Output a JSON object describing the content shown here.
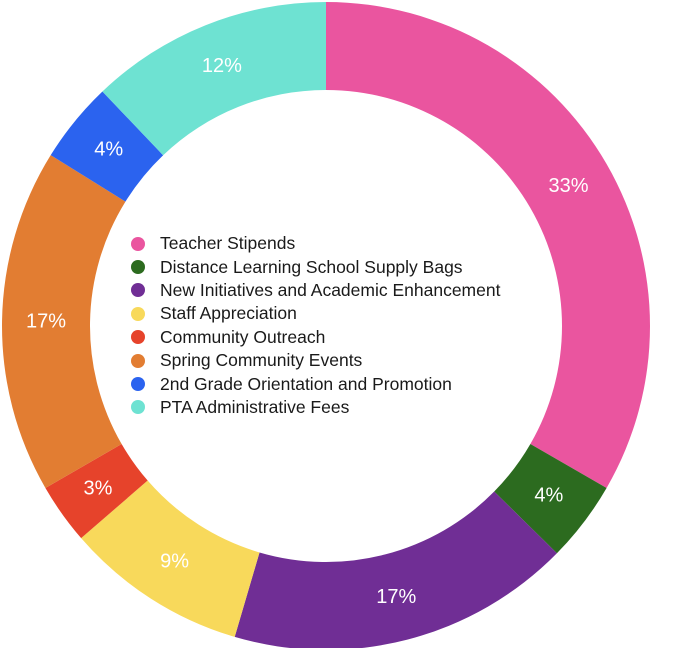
{
  "chart_data": {
    "type": "pie",
    "variant": "donut",
    "title": "",
    "legend_position": "center",
    "start_angle_deg": 0,
    "direction": "clockwise",
    "categories": [
      "Teacher Stipends",
      "Distance Learning School Supply Bags",
      "New Initiatives and Academic Enhancement",
      "Staff Appreciation",
      "Community Outreach",
      "Spring Community Events",
      "2nd Grade Orientation and Promotion",
      "PTA Administrative Fees"
    ],
    "values": [
      33,
      4,
      17,
      9,
      3,
      17,
      4,
      12
    ],
    "value_labels": [
      "33%",
      "4%",
      "17%",
      "9%",
      "3%",
      "17%",
      "4%",
      "12%"
    ],
    "colors": [
      "#ea559f",
      "#2c6b1f",
      "#702e95",
      "#f8d95b",
      "#e6432b",
      "#e27d32",
      "#2b63ef",
      "#6ee2d2"
    ]
  }
}
